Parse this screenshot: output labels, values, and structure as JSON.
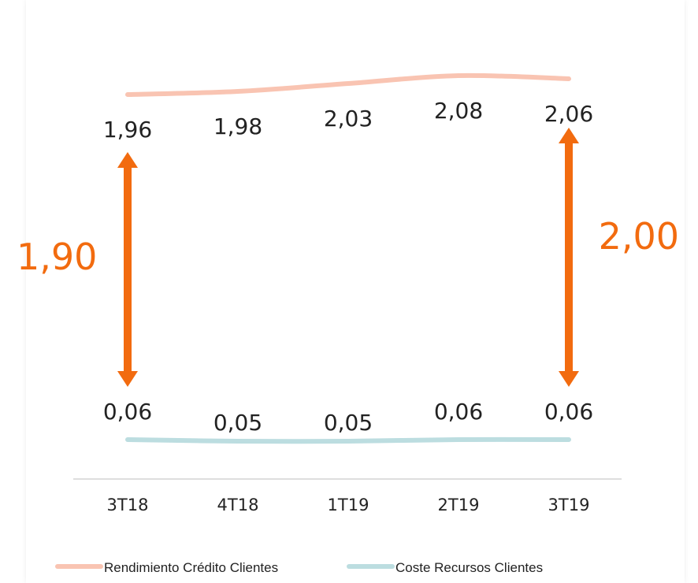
{
  "chart_data": {
    "type": "line",
    "categories": [
      "3T18",
      "4T18",
      "1T19",
      "2T19",
      "3T19"
    ],
    "series": [
      {
        "name": "Rendimiento Crédito Clientes",
        "values": [
          1.96,
          1.98,
          2.03,
          2.08,
          2.06
        ],
        "labels": [
          "1,96",
          "1,98",
          "2,03",
          "2,08",
          "2,06"
        ],
        "color": "#f9c4b2"
      },
      {
        "name": "Coste Recursos Clientes",
        "values": [
          0.06,
          0.05,
          0.05,
          0.06,
          0.06
        ],
        "labels": [
          "0,06",
          "0,05",
          "0,05",
          "0,06",
          "0,06"
        ],
        "color": "#bcdde0"
      }
    ],
    "annotations": [
      {
        "category": "3T18",
        "label": "1,90",
        "value": 1.9,
        "side": "left"
      },
      {
        "category": "3T19",
        "label": "2,00",
        "value": 2.0,
        "side": "right"
      }
    ],
    "annotation_color": "#f26b0f",
    "legend_position": "bottom",
    "grid": false,
    "title": "",
    "xlabel": "",
    "ylabel": ""
  }
}
